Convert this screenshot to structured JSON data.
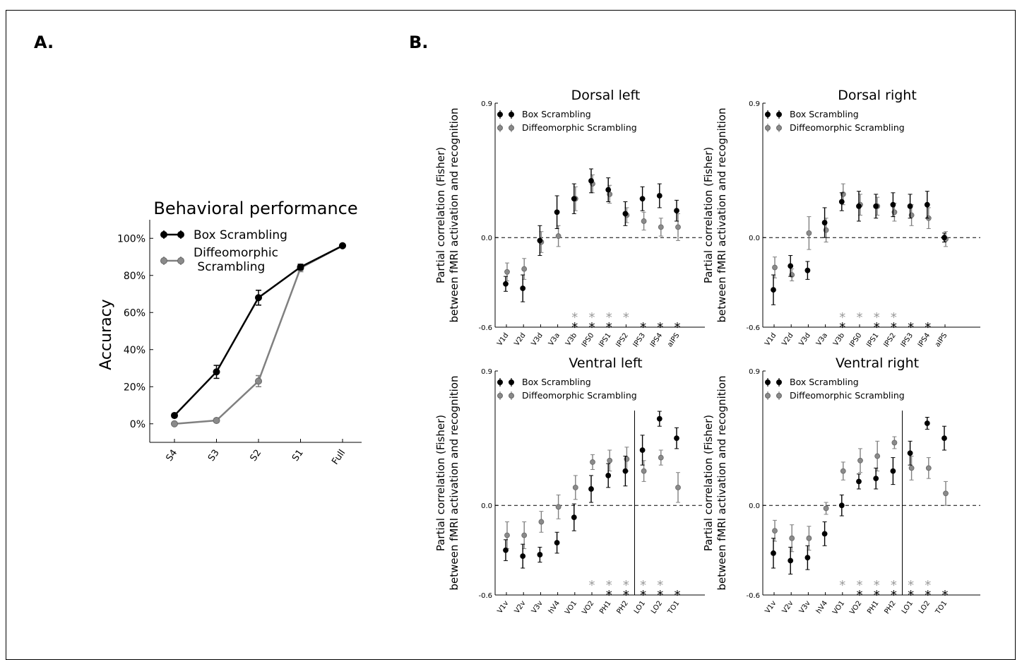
{
  "panel_a_letter": "A.",
  "panel_b_letter": "B.",
  "colors": {
    "box": "#000000",
    "diff": "#808080",
    "diff_fill": "#8a8a8a",
    "diff_star": "#999999"
  },
  "chart_data": [
    {
      "id": "behavioral",
      "type": "line",
      "title": "Behavioral performance",
      "xlabel": "",
      "ylabel": "Accuracy",
      "categories": [
        "S4",
        "S3",
        "S2",
        "S1",
        "Full"
      ],
      "yticks": [
        "0%",
        "20%",
        "40%",
        "60%",
        "80%",
        "100%"
      ],
      "ylim": [
        -0.1,
        1.1
      ],
      "legend": "top-left",
      "series": [
        {
          "name": "Box Scrambling",
          "values": [
            0.045,
            0.28,
            0.68,
            0.845,
            0.96
          ],
          "errors": [
            0.01,
            0.035,
            0.04,
            0.015,
            0.005
          ]
        },
        {
          "name": "Diffeomorphic Scrambling",
          "values": [
            0.0,
            0.018,
            0.23,
            0.84,
            0.96
          ],
          "errors": [
            0.005,
            0.01,
            0.03,
            0.02,
            0.005
          ]
        }
      ]
    },
    {
      "id": "dorsal-left",
      "type": "scatter",
      "title": "Dorsal left",
      "ylabel": "Partial correlation (Fisher)\nbetween fMRI activation and recognition",
      "categories": [
        "V1d",
        "V2d",
        "V3d",
        "V3a",
        "V3b",
        "IPS0",
        "IPS1",
        "IPS2",
        "IPS3",
        "IPS4",
        "aIPS"
      ],
      "yticks": [
        "0.9",
        "0.0",
        "-0.6"
      ],
      "ylim": [
        -0.6,
        0.9
      ],
      "legend": "top-left",
      "separator_after": null,
      "series": [
        {
          "name": "Box Scrambling",
          "values": [
            -0.31,
            -0.34,
            -0.02,
            0.17,
            0.26,
            0.38,
            0.32,
            0.16,
            0.26,
            0.28,
            0.18
          ],
          "errors": [
            0.05,
            0.09,
            0.1,
            0.11,
            0.1,
            0.08,
            0.08,
            0.08,
            0.08,
            0.08,
            0.07
          ]
        },
        {
          "name": "Diffeomorphic Scrambling",
          "values": [
            -0.23,
            -0.21,
            -0.03,
            0.01,
            0.26,
            0.36,
            0.29,
            0.15,
            0.11,
            0.07,
            0.07
          ],
          "errors": [
            0.06,
            0.07,
            0.07,
            0.07,
            0.08,
            0.06,
            0.06,
            0.05,
            0.06,
            0.06,
            0.09
          ]
        }
      ],
      "significance_box": [
        "",
        "",
        "",
        "",
        "*",
        "*",
        "*",
        "",
        "*",
        "*",
        "*"
      ],
      "significance_diff": [
        "",
        "",
        "",
        "",
        "*",
        "*",
        "*",
        "*",
        "",
        "",
        ""
      ]
    },
    {
      "id": "dorsal-right",
      "type": "scatter",
      "title": "Dorsal right",
      "ylabel": "Partial correlation (Fisher)\nbetween fMRI activation and recognition",
      "categories": [
        "V1d",
        "V2d",
        "V3d",
        "V3a",
        "V3b",
        "IPS0",
        "IPS1",
        "IPS2",
        "IPS3",
        "IPS4",
        "aIPS"
      ],
      "yticks": [
        "0.9",
        "0.0",
        "-0.6"
      ],
      "ylim": [
        -0.6,
        0.9
      ],
      "legend": "top-left",
      "separator_after": null,
      "series": [
        {
          "name": "Box Scrambling",
          "values": [
            -0.35,
            -0.19,
            -0.22,
            0.1,
            0.24,
            0.21,
            0.21,
            0.22,
            0.21,
            0.22,
            0.0
          ],
          "errors": [
            0.1,
            0.07,
            0.06,
            0.1,
            0.06,
            0.1,
            0.08,
            0.08,
            0.08,
            0.09,
            0.03
          ]
        },
        {
          "name": "Diffeomorphic Scrambling",
          "values": [
            -0.2,
            -0.25,
            0.03,
            0.05,
            0.29,
            0.22,
            0.21,
            0.17,
            0.15,
            0.13,
            -0.01
          ],
          "errors": [
            0.07,
            0.04,
            0.11,
            0.08,
            0.07,
            0.07,
            0.06,
            0.06,
            0.07,
            0.07,
            0.05
          ]
        }
      ],
      "significance_box": [
        "",
        "",
        "",
        "",
        "*",
        "",
        "*",
        "*",
        "*",
        "*",
        ""
      ],
      "significance_diff": [
        "",
        "",
        "",
        "",
        "*",
        "*",
        "*",
        "*",
        "",
        "",
        ""
      ]
    },
    {
      "id": "ventral-left",
      "type": "scatter",
      "title": "Ventral left",
      "ylabel": "Partial correlation (Fisher)\nbetween fMRI activation and recognition",
      "categories": [
        "V1v",
        "V2v",
        "V3v",
        "hV4",
        "VO1",
        "VO2",
        "PH1",
        "PH2",
        "LO1",
        "LO2",
        "TO1"
      ],
      "yticks": [
        "0.9",
        "0.0",
        "-0.6"
      ],
      "ylim": [
        -0.6,
        0.9
      ],
      "legend": "top-left",
      "separator_after": "PH2",
      "series": [
        {
          "name": "Box Scrambling",
          "values": [
            -0.3,
            -0.34,
            -0.33,
            -0.25,
            -0.08,
            0.11,
            0.2,
            0.23,
            0.37,
            0.58,
            0.45
          ],
          "errors": [
            0.07,
            0.08,
            0.05,
            0.07,
            0.09,
            0.09,
            0.08,
            0.1,
            0.1,
            0.05,
            0.07
          ]
        },
        {
          "name": "Diffeomorphic Scrambling",
          "values": [
            -0.2,
            -0.2,
            -0.11,
            -0.01,
            0.12,
            0.29,
            0.3,
            0.31,
            0.23,
            0.32,
            0.12
          ],
          "errors": [
            0.09,
            0.09,
            0.07,
            0.08,
            0.08,
            0.05,
            0.07,
            0.08,
            0.07,
            0.05,
            0.1
          ]
        }
      ],
      "significance_box": [
        "",
        "",
        "",
        "",
        "",
        "",
        "*",
        "*",
        "*",
        "*",
        "*"
      ],
      "significance_diff": [
        "",
        "",
        "",
        "",
        "",
        "*",
        "*",
        "*",
        "*",
        "*",
        ""
      ]
    },
    {
      "id": "ventral-right",
      "type": "scatter",
      "title": "Ventral right",
      "ylabel": "Partial correlation (Fisher)\nbetween fMRI activation and recognition",
      "categories": [
        "V1v",
        "V2v",
        "V3v",
        "hV4",
        "VO1",
        "VO2",
        "PH1",
        "PH2",
        "LO1",
        "LO2",
        "TO1"
      ],
      "yticks": [
        "0.9",
        "0.0",
        "-0.6"
      ],
      "ylim": [
        -0.6,
        0.9
      ],
      "legend": "top-left",
      "separator_after": "PH2",
      "series": [
        {
          "name": "Box Scrambling",
          "values": [
            -0.32,
            -0.37,
            -0.35,
            -0.19,
            0.0,
            0.16,
            0.18,
            0.23,
            0.35,
            0.55,
            0.45
          ],
          "errors": [
            0.1,
            0.09,
            0.08,
            0.08,
            0.07,
            0.05,
            0.07,
            0.09,
            0.08,
            0.04,
            0.08
          ]
        },
        {
          "name": "Diffeomorphic Scrambling",
          "values": [
            -0.17,
            -0.22,
            -0.22,
            -0.02,
            0.23,
            0.3,
            0.33,
            0.42,
            0.25,
            0.25,
            0.08
          ],
          "errors": [
            0.07,
            0.09,
            0.08,
            0.04,
            0.06,
            0.08,
            0.1,
            0.04,
            0.08,
            0.07,
            0.08
          ]
        }
      ],
      "significance_box": [
        "",
        "",
        "",
        "",
        "",
        "*",
        "*",
        "*",
        "*",
        "*",
        "*"
      ],
      "significance_diff": [
        "",
        "",
        "",
        "",
        "*",
        "*",
        "*",
        "*",
        "*",
        "*",
        ""
      ]
    }
  ]
}
